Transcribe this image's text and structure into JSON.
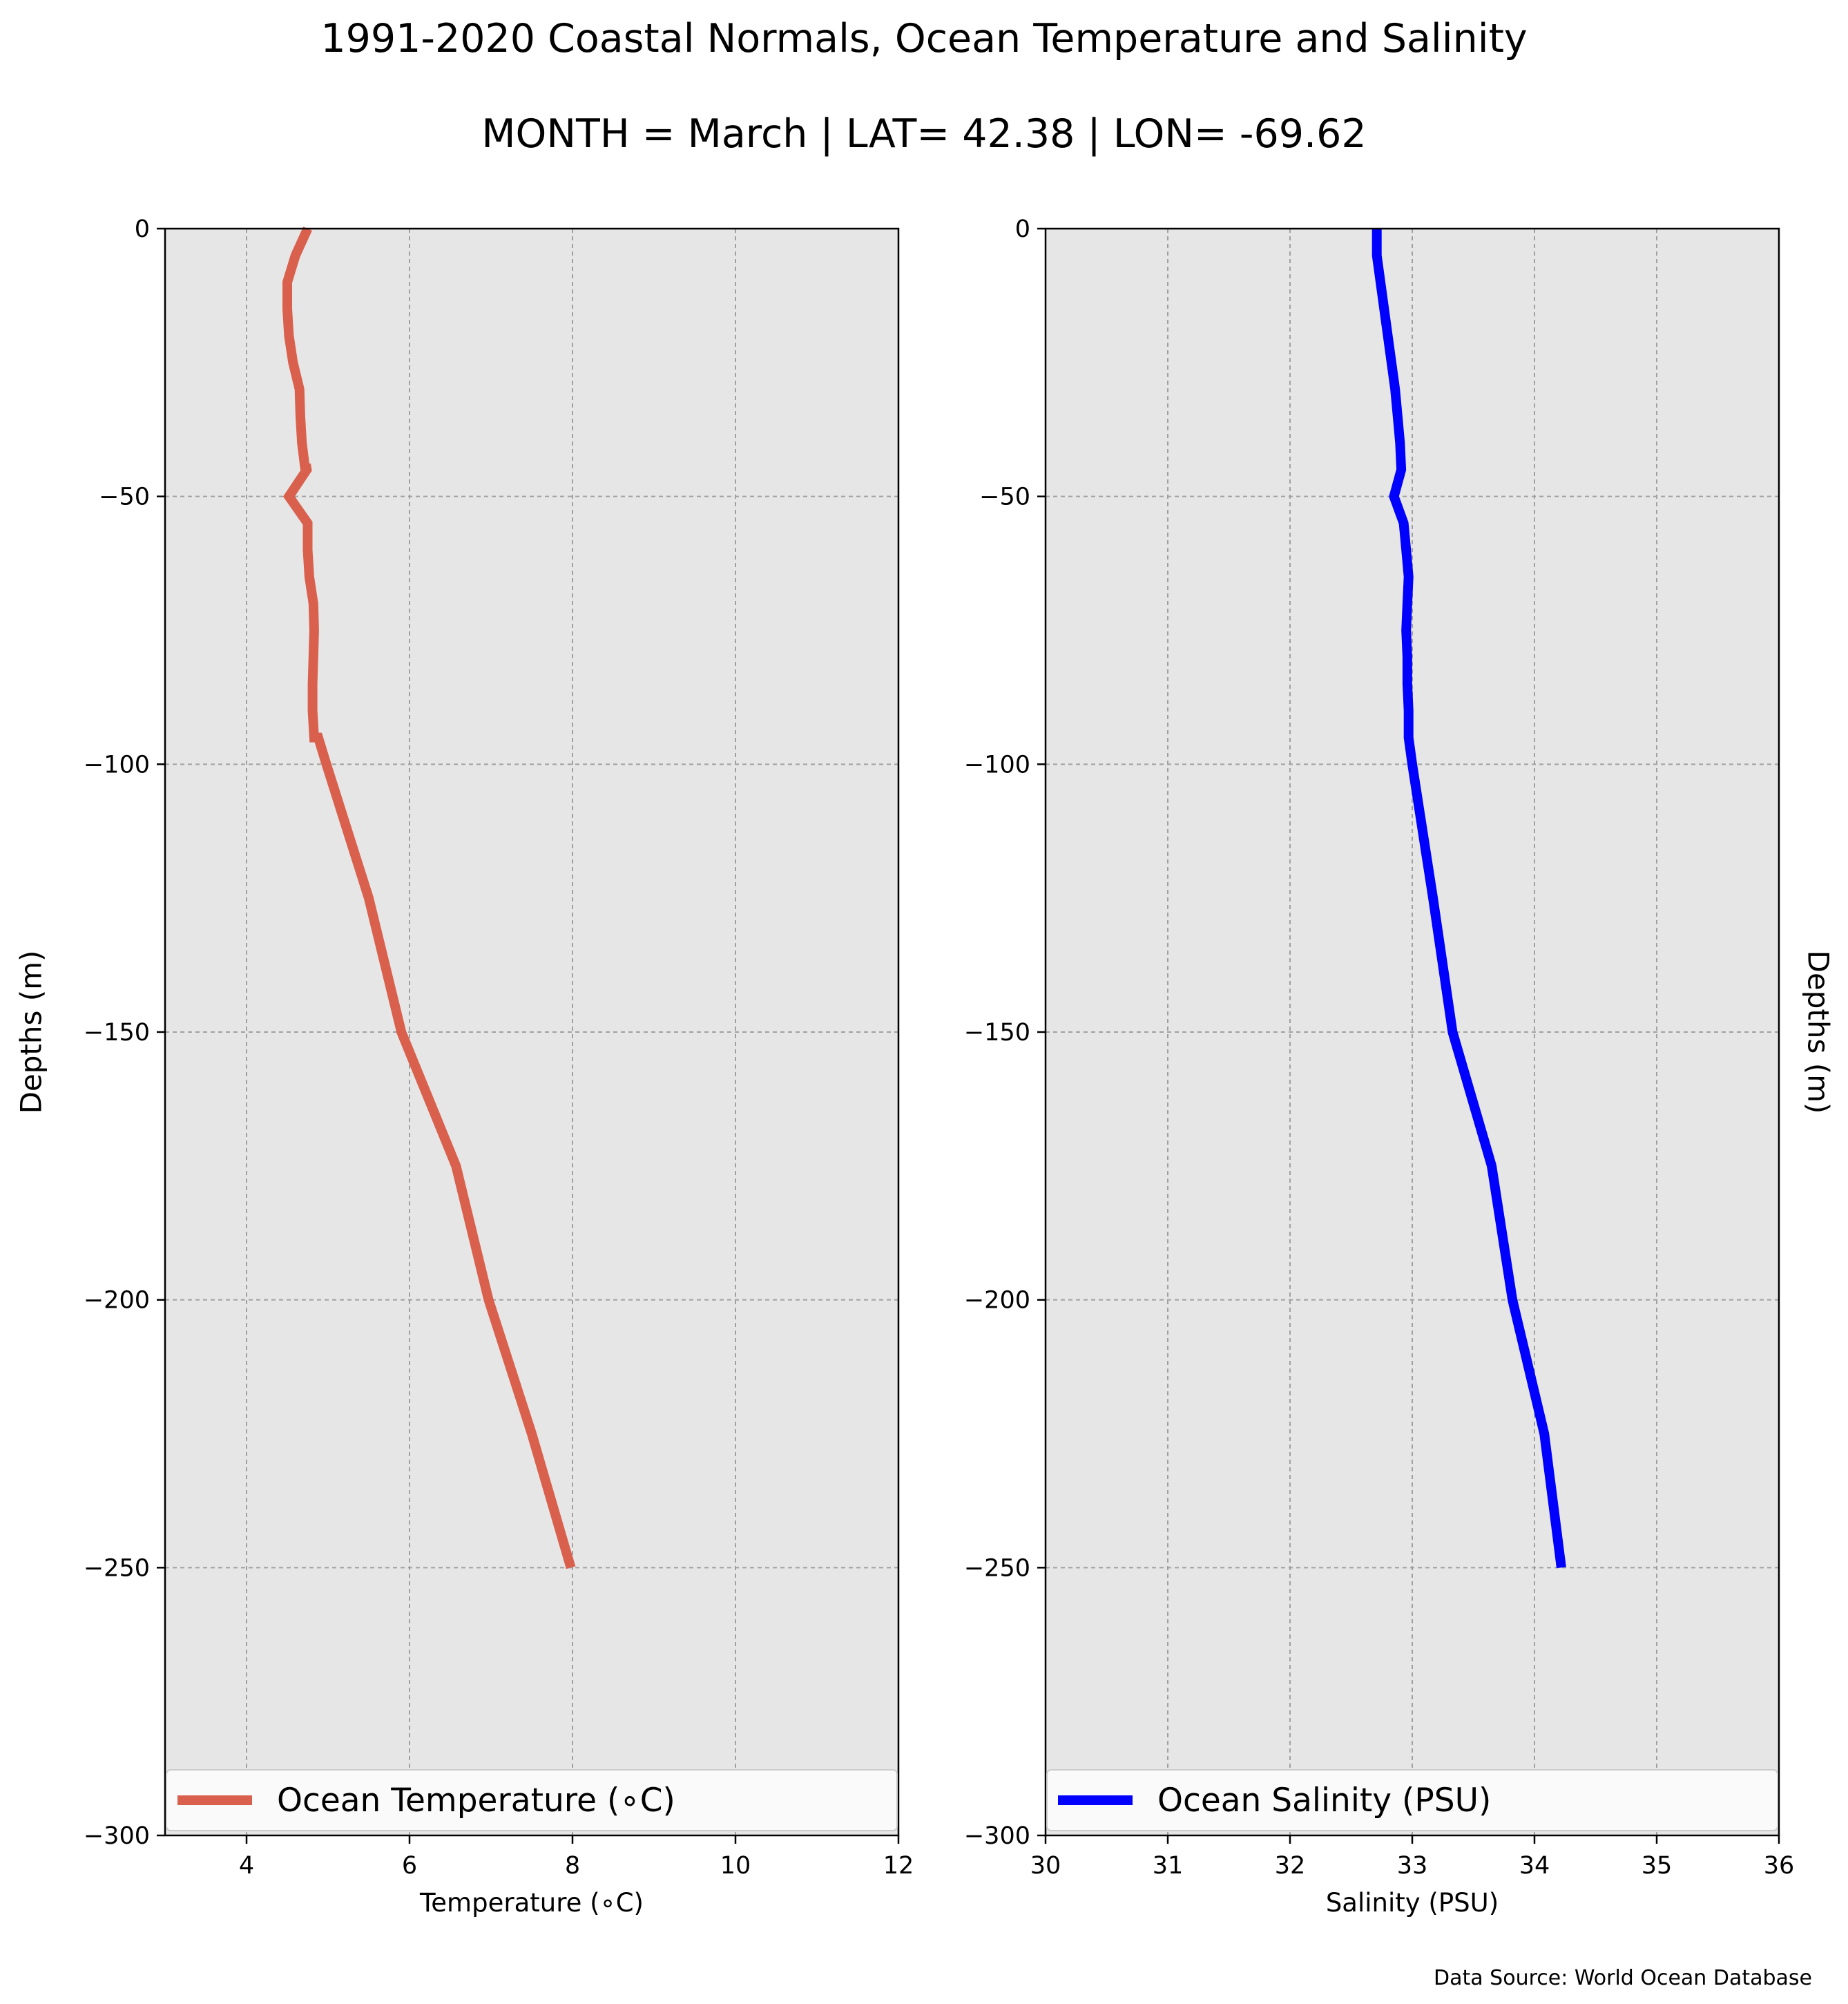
{
  "figure": {
    "title_line1": "1991-2020 Coastal Normals, Ocean Temperature and Salinity",
    "title_line2": "MONTH = March | LAT= 42.38 | LON= -69.62",
    "source": "Data Source: World Ocean Database",
    "colors": {
      "temperature": "#d9604c",
      "salinity": "#0000ff",
      "plot_background": "#e6e6e6",
      "grid": "#a0a0a0"
    }
  },
  "chart_data": [
    {
      "type": "line",
      "ylabel": "Depths (m)",
      "xlabel": "Temperature ($^\\circ$C)",
      "xlabel_display": "Temperature (∘C)",
      "xlim": [
        3,
        12
      ],
      "ylim": [
        -300,
        0
      ],
      "xticks": [
        4,
        6,
        8,
        10,
        12
      ],
      "xtick_labels": [
        "4",
        "6",
        "8",
        "10",
        "12"
      ],
      "yticks": [
        0,
        -50,
        -100,
        -150,
        -200,
        -250,
        -300
      ],
      "ytick_labels": [
        "0",
        "−50",
        "−100",
        "−150",
        "−200",
        "−250",
        "−300"
      ],
      "grid": true,
      "legend_position": "bottom",
      "series": [
        {
          "name": "Ocean Temperature (∘C)",
          "color": "#d9604c",
          "x": [
            4.75,
            4.6,
            4.5,
            4.5,
            4.52,
            4.57,
            4.65,
            4.66,
            4.68,
            4.72,
            4.73,
            4.74,
            4.52,
            4.75,
            4.75,
            4.77,
            4.82,
            4.83,
            4.82,
            4.81,
            4.81,
            4.83,
            4.85,
            4.88,
            4.98,
            5.5,
            5.9,
            6.57,
            6.97,
            7.5,
            7.98
          ],
          "y": [
            0,
            -5,
            -10,
            -15,
            -20,
            -25,
            -30,
            -35,
            -40,
            -45,
            -44,
            -45,
            -50,
            -55,
            -60,
            -65,
            -70,
            -75,
            -80,
            -85,
            -90,
            -95,
            -95,
            -95,
            -100,
            -125,
            -150,
            -175,
            -200,
            -225,
            -250
          ]
        }
      ]
    },
    {
      "type": "line",
      "ylabel": "Depths (m)",
      "xlabel": "Salinity (PSU)",
      "xlim": [
        30,
        36
      ],
      "ylim": [
        -300,
        0
      ],
      "xticks": [
        30,
        31,
        32,
        33,
        34,
        35,
        36
      ],
      "xtick_labels": [
        "30",
        "31",
        "32",
        "33",
        "34",
        "35",
        "36"
      ],
      "yticks": [
        0,
        -50,
        -100,
        -150,
        -200,
        -250,
        -300
      ],
      "ytick_labels": [
        "0",
        "−50",
        "−100",
        "−150",
        "−200",
        "−250",
        "−300"
      ],
      "grid": true,
      "legend_position": "bottom",
      "series": [
        {
          "name": "Ocean Salinity (PSU)",
          "color": "#0000ff",
          "x": [
            32.71,
            32.71,
            32.74,
            32.77,
            32.8,
            32.83,
            32.86,
            32.88,
            32.9,
            32.91,
            32.85,
            32.93,
            32.95,
            32.97,
            32.96,
            32.95,
            32.96,
            32.96,
            32.97,
            32.97,
            33.0,
            33.17,
            33.33,
            33.65,
            33.82,
            34.08,
            34.22
          ],
          "y": [
            0,
            -5,
            -10,
            -15,
            -20,
            -25,
            -30,
            -35,
            -40,
            -45,
            -50,
            -55,
            -60,
            -65,
            -70,
            -75,
            -80,
            -85,
            -90,
            -95,
            -100,
            -125,
            -150,
            -175,
            -200,
            -225,
            -250
          ]
        }
      ]
    }
  ]
}
